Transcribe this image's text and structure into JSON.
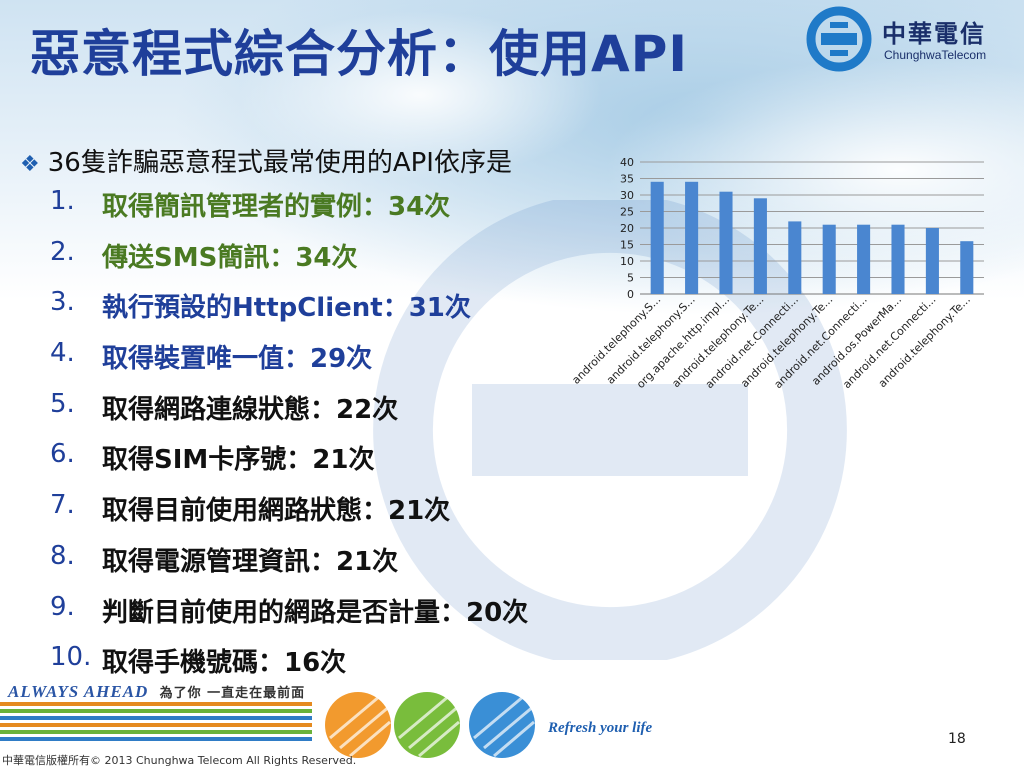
{
  "title": "惡意程式綜合分析：使用API",
  "logo": {
    "name_cn": "中華電信",
    "name_en": "ChunghwaTelecom"
  },
  "intro": "36隻詐騙惡意程式最常使用的API依序是",
  "items": [
    {
      "num": "1.",
      "text": "取得簡訊管理者的實例：34次"
    },
    {
      "num": "2.",
      "text": "傳送SMS簡訊：34次"
    },
    {
      "num": "3.",
      "text": "執行預設的HttpClient：31次"
    },
    {
      "num": "4.",
      "text": "取得裝置唯一值：29次"
    },
    {
      "num": "5.",
      "text": "取得網路連線狀態：22次"
    },
    {
      "num": "6.",
      "text": "取得SIM卡序號：21次"
    },
    {
      "num": "7.",
      "text": "取得目前使用網路狀態：21次"
    },
    {
      "num": "8.",
      "text": "取得電源管理資訊：21次"
    },
    {
      "num": "9.",
      "text": "判斷目前使用的網路是否計量：20次"
    },
    {
      "num": "10.",
      "text": "取得手機號碼：16次"
    }
  ],
  "colors": {
    "title": "#1f3f9a",
    "item_green": "#4a7a22",
    "item_blue": "#1f3f9a",
    "item_black": "#111111",
    "bar": "#4a86d0"
  },
  "item_styles": [
    "green",
    "green",
    "blue",
    "blue",
    "black",
    "black",
    "black",
    "black",
    "black",
    "black"
  ],
  "chart_data": {
    "type": "bar",
    "categories": [
      "android.telephony.S...",
      "android.telephony.S...",
      "org.apache.http.impl...",
      "android.telephony.Te...",
      "android.net.Connecti...",
      "android.telephony.Te...",
      "android.net.Connecti...",
      "android.os.PowerMa...",
      "android.net.Connecti...",
      "android.telephony.Te..."
    ],
    "values": [
      34,
      34,
      31,
      29,
      22,
      21,
      21,
      21,
      20,
      16
    ],
    "ylim": [
      0,
      40
    ],
    "yticks": [
      "0",
      "5",
      "10",
      "15",
      "20",
      "25",
      "30",
      "35",
      "40"
    ],
    "grid": true,
    "title": "",
    "xlabel": "",
    "ylabel": ""
  },
  "footer": {
    "slogan_en": "ALWAYS AHEAD",
    "slogan_cn": "為了你 一直走在最前面",
    "refresh": "Refresh your life",
    "page_number": "18",
    "copyright": "中華電信版權所有© 2013 Chunghwa Telecom All Rights Reserved."
  }
}
